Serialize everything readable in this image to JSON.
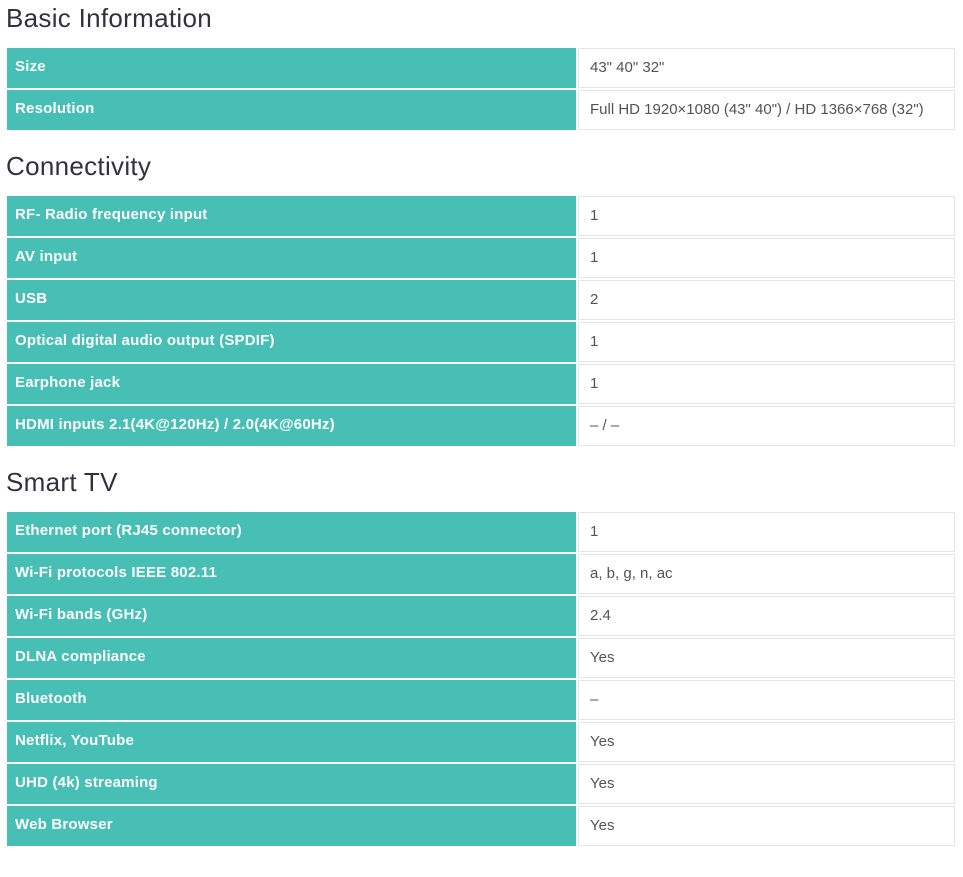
{
  "page": {
    "colors": {
      "accent_teal": "#47bfb4",
      "heading_text": "#34313f",
      "label_text": "#ffffff",
      "value_text": "#55525c",
      "cell_border": "#e6e6e6"
    },
    "sections": [
      {
        "title": "Basic Information",
        "rows": [
          {
            "label": "Size",
            "value": "43\" 40\" 32\""
          },
          {
            "label": "Resolution",
            "value": "Full HD 1920×1080 (43\" 40\") / HD 1366×768 (32\")"
          }
        ]
      },
      {
        "title": "Connectivity",
        "rows": [
          {
            "label": "RF- Radio frequency input",
            "value": "1"
          },
          {
            "label": "AV input",
            "value": "1"
          },
          {
            "label": "USB",
            "value": "2"
          },
          {
            "label": "Optical digital audio output (SPDIF)",
            "value": "1"
          },
          {
            "label": "Earphone jack",
            "value": "1"
          },
          {
            "label": "HDMI inputs 2.1(4K@120Hz) / 2.0(4K@60Hz)",
            "value": "– / –"
          }
        ]
      },
      {
        "title": "Smart TV",
        "rows": [
          {
            "label": "Ethernet port (RJ45 connector)",
            "value": "1"
          },
          {
            "label": "Wi-Fi protocols IEEE 802.11",
            "value": "a, b, g, n, ac"
          },
          {
            "label": "Wi-Fi bands (GHz)",
            "value": "2.4"
          },
          {
            "label": "DLNA compliance",
            "value": "Yes"
          },
          {
            "label": "Bluetooth",
            "value": "–"
          },
          {
            "label": "Netflix, YouTube",
            "value": "Yes"
          },
          {
            "label": "UHD (4k) streaming",
            "value": "Yes"
          },
          {
            "label": "Web Browser",
            "value": "Yes"
          }
        ]
      }
    ]
  }
}
